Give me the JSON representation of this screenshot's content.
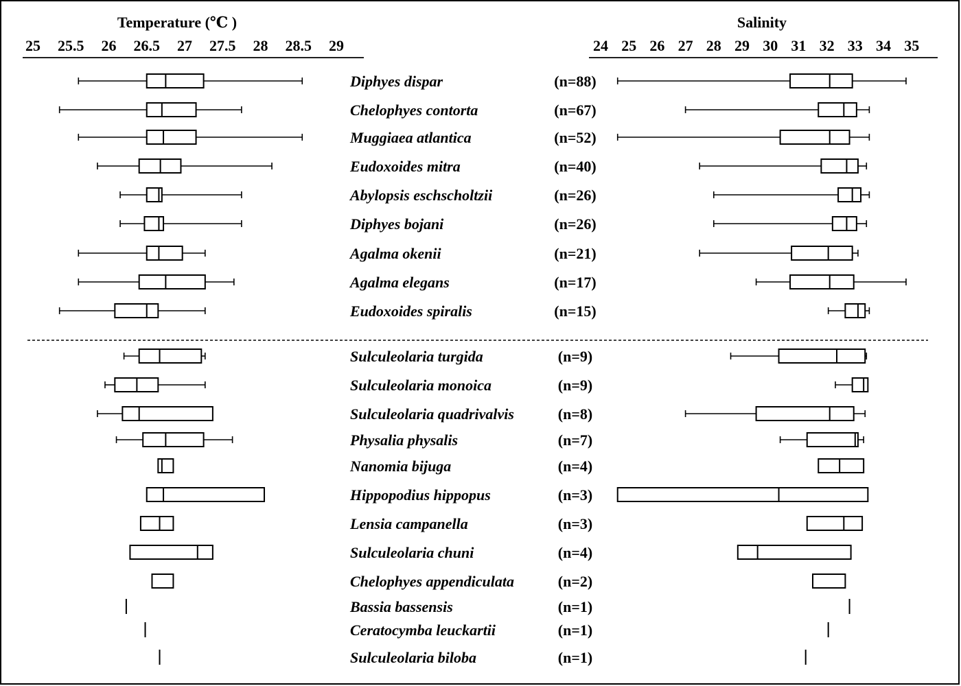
{
  "chart_data": {
    "type": "boxplot",
    "panels": [
      {
        "id": "temperature",
        "title": "Temperature (℃ )",
        "ticks": [
          "25",
          "25.5",
          "26",
          "26.5",
          "27",
          "27.5",
          "28",
          "28.5",
          "29"
        ],
        "xlim": [
          25,
          29
        ]
      },
      {
        "id": "salinity",
        "title": "Salinity",
        "ticks": [
          "24",
          "25",
          "26",
          "27",
          "28",
          "29",
          "30",
          "31",
          "32",
          "33",
          "34",
          "35"
        ],
        "xlim": [
          24,
          35
        ]
      }
    ],
    "groups_separator_after": 9,
    "species": [
      {
        "name": "Diphyes dispar",
        "n": "(n=88)",
        "temperature": {
          "min": 25.6,
          "q1": 26.5,
          "median": 26.75,
          "q3": 27.25,
          "max": 28.55
        },
        "salinity": {
          "min": 24.6,
          "q1": 30.7,
          "median": 32.1,
          "q3": 32.9,
          "max": 34.8
        }
      },
      {
        "name": "Chelophyes contorta",
        "n": "(n=67)",
        "temperature": {
          "min": 25.35,
          "q1": 26.5,
          "median": 26.7,
          "q3": 27.15,
          "max": 27.75
        },
        "salinity": {
          "min": 27.0,
          "q1": 31.7,
          "median": 32.6,
          "q3": 33.05,
          "max": 33.5
        }
      },
      {
        "name": "Muggiaea atlantica",
        "n": "(n=52)",
        "temperature": {
          "min": 25.6,
          "q1": 26.5,
          "median": 26.72,
          "q3": 27.15,
          "max": 28.55
        },
        "salinity": {
          "min": 24.6,
          "q1": 30.35,
          "median": 32.1,
          "q3": 32.8,
          "max": 33.5
        }
      },
      {
        "name": "Eudoxoides mitra",
        "n": "(n=40)",
        "temperature": {
          "min": 25.85,
          "q1": 26.4,
          "median": 26.68,
          "q3": 26.95,
          "max": 28.15
        },
        "salinity": {
          "min": 27.5,
          "q1": 31.8,
          "median": 32.7,
          "q3": 33.1,
          "max": 33.4
        }
      },
      {
        "name": "Abylopsis eschscholtzii",
        "n": "(n=26)",
        "temperature": {
          "min": 26.15,
          "q1": 26.5,
          "median": 26.66,
          "q3": 26.7,
          "max": 27.75
        },
        "salinity": {
          "min": 28.0,
          "q1": 32.4,
          "median": 32.9,
          "q3": 33.2,
          "max": 33.5
        }
      },
      {
        "name": "Diphyes bojani",
        "n": "(n=26)",
        "temperature": {
          "min": 26.15,
          "q1": 26.47,
          "median": 26.66,
          "q3": 26.72,
          "max": 27.75
        },
        "salinity": {
          "min": 28.0,
          "q1": 32.2,
          "median": 32.7,
          "q3": 33.05,
          "max": 33.4
        }
      },
      {
        "name": "Agalma okenii",
        "n": "(n=21)",
        "temperature": {
          "min": 25.6,
          "q1": 26.5,
          "median": 26.66,
          "q3": 26.97,
          "max": 27.27
        },
        "salinity": {
          "min": 27.5,
          "q1": 30.75,
          "median": 32.05,
          "q3": 32.9,
          "max": 33.1
        }
      },
      {
        "name": "Agalma elegans",
        "n": "(n=17)",
        "temperature": {
          "min": 25.6,
          "q1": 26.4,
          "median": 26.75,
          "q3": 27.27,
          "max": 27.65
        },
        "salinity": {
          "min": 29.5,
          "q1": 30.7,
          "median": 32.1,
          "q3": 32.95,
          "max": 34.8
        }
      },
      {
        "name": "Eudoxoides spiralis",
        "n": "(n=15)",
        "temperature": {
          "min": 25.35,
          "q1": 26.08,
          "median": 26.5,
          "q3": 26.65,
          "max": 27.27
        },
        "salinity": {
          "min": 32.05,
          "q1": 32.65,
          "median": 33.1,
          "q3": 33.35,
          "max": 33.5
        }
      },
      {
        "name": "Sulculeolaria turgida",
        "n": "(n=9)",
        "temperature": {
          "min": 26.2,
          "q1": 26.4,
          "median": 26.67,
          "q3": 27.22,
          "max": 27.27
        },
        "salinity": {
          "min": 28.6,
          "q1": 30.3,
          "median": 32.35,
          "q3": 33.35,
          "max": 33.4
        }
      },
      {
        "name": "Sulculeolaria monoica",
        "n": "(n=9)",
        "temperature": {
          "min": 25.95,
          "q1": 26.08,
          "median": 26.37,
          "q3": 26.65,
          "max": 27.27
        },
        "salinity": {
          "min": 32.3,
          "q1": 32.9,
          "median": 33.3,
          "q3": 33.45,
          "max": 33.45
        }
      },
      {
        "name": "Sulculeolaria quadrivalvis",
        "n": "(n=8)",
        "temperature": {
          "min": 25.85,
          "q1": 26.18,
          "median": 26.4,
          "q3": 27.37,
          "max": 27.37
        },
        "salinity": {
          "min": 27.0,
          "q1": 29.5,
          "median": 32.1,
          "q3": 32.95,
          "max": 33.35
        }
      },
      {
        "name": "Physalia physalis",
        "n": "(n=7)",
        "temperature": {
          "min": 26.1,
          "q1": 26.45,
          "median": 26.75,
          "q3": 27.25,
          "max": 27.63
        },
        "salinity": {
          "min": 30.35,
          "q1": 31.3,
          "median": 33.0,
          "q3": 33.1,
          "max": 33.3
        }
      },
      {
        "name": "Nanomia bijuga",
        "n": "(n=4)",
        "temperature": {
          "min": 26.65,
          "q1": 26.65,
          "median": 26.7,
          "q3": 26.85,
          "max": 26.85
        },
        "salinity": {
          "min": 31.7,
          "q1": 31.7,
          "median": 32.45,
          "q3": 33.3,
          "max": 33.3
        }
      },
      {
        "name": "Hippopodius hippopus",
        "n": "(n=3)",
        "temperature": {
          "min": 26.5,
          "q1": 26.5,
          "median": 26.72,
          "q3": 28.05,
          "max": 28.05
        },
        "salinity": {
          "min": 24.6,
          "q1": 24.6,
          "median": 30.3,
          "q3": 33.45,
          "max": 33.45
        }
      },
      {
        "name": "Lensia campanella",
        "n": "(n=3)",
        "temperature": {
          "min": 26.42,
          "q1": 26.42,
          "median": 26.67,
          "q3": 26.85,
          "max": 26.85
        },
        "salinity": {
          "min": 31.3,
          "q1": 31.3,
          "median": 32.6,
          "q3": 33.25,
          "max": 33.25
        }
      },
      {
        "name": "Sulculeolaria chuni",
        "n": "(n=4)",
        "temperature": {
          "min": 26.28,
          "q1": 26.28,
          "median": 27.17,
          "q3": 27.37,
          "max": 27.37
        },
        "salinity": {
          "min": 28.85,
          "q1": 28.85,
          "median": 29.55,
          "q3": 32.85,
          "max": 32.85
        }
      },
      {
        "name": "Chelophyes appendiculata",
        "n": "(n=2)",
        "temperature": {
          "min": 26.57,
          "q1": 26.57,
          "median": null,
          "q3": 26.85,
          "max": 26.85
        },
        "salinity": {
          "min": 31.5,
          "q1": 31.5,
          "median": null,
          "q3": 32.65,
          "max": 32.65
        }
      },
      {
        "name": "Bassia bassensis",
        "n": "(n=1)",
        "temperature": {
          "value": 26.23
        },
        "salinity": {
          "value": 32.8
        }
      },
      {
        "name": "Ceratocymba leuckartii",
        "n": "(n=1)",
        "temperature": {
          "value": 26.48
        },
        "salinity": {
          "value": 32.05
        }
      },
      {
        "name": "Sulculeolaria biloba",
        "n": "(n=1)",
        "temperature": {
          "value": 26.67
        },
        "salinity": {
          "value": 31.25
        }
      }
    ]
  }
}
